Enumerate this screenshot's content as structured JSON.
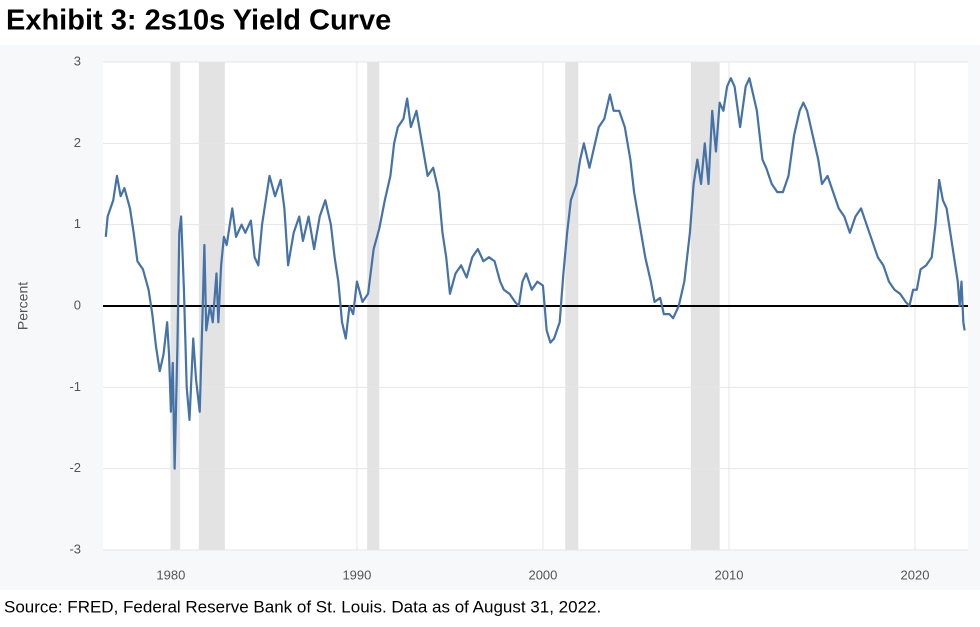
{
  "chart_data": {
    "type": "line",
    "title": "Exhibit 3: 2s10s Yield Curve",
    "y_label": "Percent",
    "source": "Source: FRED, Federal Reserve Bank of St. Louis. Data as of August 31, 2022.",
    "color": "#4572a7",
    "shade_color": "#e3e3e3",
    "zero_line": 0,
    "grid": true,
    "xlim": [
      1976.35,
      2022.85
    ],
    "ylim": [
      -3,
      3
    ],
    "xticks": [
      1980,
      1990,
      2000,
      2010,
      2020
    ],
    "yticks": [
      -3,
      -2,
      -1,
      0,
      1,
      2,
      3
    ],
    "shaded_periods": [
      [
        1980.0,
        1980.5
      ],
      [
        1981.5,
        1982.9
      ],
      [
        1990.55,
        1991.2
      ],
      [
        2001.2,
        2001.9
      ],
      [
        2007.95,
        2009.5
      ]
    ],
    "x": [
      1976.5,
      1976.6,
      1976.9,
      1977.1,
      1977.3,
      1977.5,
      1977.8,
      1978.0,
      1978.2,
      1978.5,
      1978.8,
      1979.0,
      1979.2,
      1979.4,
      1979.6,
      1979.8,
      1979.9,
      1980.0,
      1980.1,
      1980.2,
      1980.35,
      1980.45,
      1980.55,
      1980.7,
      1980.85,
      1981.0,
      1981.2,
      1981.35,
      1981.55,
      1981.7,
      1981.8,
      1981.9,
      1982.1,
      1982.25,
      1982.45,
      1982.55,
      1982.7,
      1982.85,
      1983.0,
      1983.3,
      1983.5,
      1983.8,
      1984.0,
      1984.3,
      1984.5,
      1984.7,
      1984.9,
      1985.1,
      1985.3,
      1985.6,
      1985.9,
      1986.1,
      1986.3,
      1986.6,
      1986.9,
      1987.1,
      1987.4,
      1987.7,
      1988.0,
      1988.3,
      1988.6,
      1988.8,
      1989.0,
      1989.2,
      1989.4,
      1989.6,
      1989.8,
      1990.0,
      1990.3,
      1990.6,
      1990.9,
      1991.2,
      1991.5,
      1991.8,
      1992.0,
      1992.2,
      1992.5,
      1992.7,
      1992.9,
      1993.2,
      1993.5,
      1993.8,
      1994.1,
      1994.4,
      1994.6,
      1994.8,
      1995.0,
      1995.3,
      1995.6,
      1995.9,
      1996.2,
      1996.5,
      1996.8,
      1997.1,
      1997.4,
      1997.7,
      1997.9,
      1998.2,
      1998.5,
      1998.7,
      1998.9,
      1999.1,
      1999.4,
      1999.7,
      2000.0,
      2000.2,
      2000.4,
      2000.6,
      2000.9,
      2001.1,
      2001.3,
      2001.5,
      2001.8,
      2002.0,
      2002.2,
      2002.5,
      2002.8,
      2003.0,
      2003.3,
      2003.6,
      2003.8,
      2004.1,
      2004.4,
      2004.7,
      2004.9,
      2005.2,
      2005.5,
      2005.8,
      2006.0,
      2006.3,
      2006.5,
      2006.8,
      2007.0,
      2007.3,
      2007.6,
      2007.9,
      2008.1,
      2008.3,
      2008.5,
      2008.7,
      2008.9,
      2009.1,
      2009.3,
      2009.5,
      2009.7,
      2009.9,
      2010.1,
      2010.3,
      2010.6,
      2010.9,
      2011.1,
      2011.3,
      2011.5,
      2011.8,
      2012.0,
      2012.3,
      2012.6,
      2012.9,
      2013.2,
      2013.5,
      2013.8,
      2014.0,
      2014.2,
      2014.5,
      2014.8,
      2015.0,
      2015.3,
      2015.6,
      2015.9,
      2016.2,
      2016.5,
      2016.8,
      2017.1,
      2017.4,
      2017.7,
      2018.0,
      2018.3,
      2018.6,
      2018.9,
      2019.2,
      2019.5,
      2019.7,
      2019.9,
      2020.1,
      2020.3,
      2020.6,
      2020.9,
      2021.1,
      2021.3,
      2021.5,
      2021.7,
      2021.9,
      2022.1,
      2022.3,
      2022.4,
      2022.5,
      2022.6,
      2022.67
    ],
    "values": [
      0.85,
      1.1,
      1.3,
      1.6,
      1.35,
      1.45,
      1.2,
      0.9,
      0.55,
      0.45,
      0.2,
      -0.1,
      -0.5,
      -0.8,
      -0.6,
      -0.2,
      -0.6,
      -1.3,
      -0.7,
      -2.0,
      -0.5,
      0.9,
      1.1,
      0.2,
      -1.0,
      -1.4,
      -0.4,
      -0.9,
      -1.3,
      -0.1,
      0.75,
      -0.3,
      0.0,
      -0.2,
      0.4,
      -0.2,
      0.5,
      0.85,
      0.75,
      1.2,
      0.85,
      1.0,
      0.9,
      1.05,
      0.6,
      0.5,
      1.0,
      1.3,
      1.6,
      1.35,
      1.55,
      1.2,
      0.5,
      0.9,
      1.1,
      0.8,
      1.1,
      0.7,
      1.1,
      1.3,
      1.0,
      0.6,
      0.3,
      -0.2,
      -0.4,
      0.0,
      -0.1,
      0.3,
      0.05,
      0.15,
      0.7,
      0.95,
      1.3,
      1.6,
      2.0,
      2.2,
      2.3,
      2.55,
      2.2,
      2.4,
      2.0,
      1.6,
      1.7,
      1.4,
      0.9,
      0.6,
      0.15,
      0.4,
      0.5,
      0.35,
      0.6,
      0.7,
      0.55,
      0.6,
      0.55,
      0.3,
      0.2,
      0.15,
      0.05,
      0.0,
      0.3,
      0.4,
      0.2,
      0.3,
      0.25,
      -0.3,
      -0.45,
      -0.4,
      -0.2,
      0.4,
      0.9,
      1.3,
      1.5,
      1.8,
      2.0,
      1.7,
      2.0,
      2.2,
      2.3,
      2.6,
      2.4,
      2.4,
      2.2,
      1.8,
      1.4,
      1.0,
      0.6,
      0.3,
      0.05,
      0.1,
      -0.1,
      -0.1,
      -0.15,
      0.0,
      0.3,
      0.9,
      1.5,
      1.8,
      1.5,
      2.0,
      1.5,
      2.4,
      1.9,
      2.5,
      2.4,
      2.7,
      2.8,
      2.7,
      2.2,
      2.7,
      2.8,
      2.6,
      2.4,
      1.8,
      1.7,
      1.5,
      1.4,
      1.4,
      1.6,
      2.1,
      2.4,
      2.5,
      2.4,
      2.1,
      1.8,
      1.5,
      1.6,
      1.4,
      1.2,
      1.1,
      0.9,
      1.1,
      1.2,
      1.0,
      0.8,
      0.6,
      0.5,
      0.3,
      0.2,
      0.15,
      0.05,
      0.0,
      0.2,
      0.2,
      0.45,
      0.5,
      0.6,
      1.0,
      1.55,
      1.3,
      1.2,
      0.9,
      0.6,
      0.3,
      0.0,
      0.3,
      -0.2,
      -0.3
    ]
  }
}
